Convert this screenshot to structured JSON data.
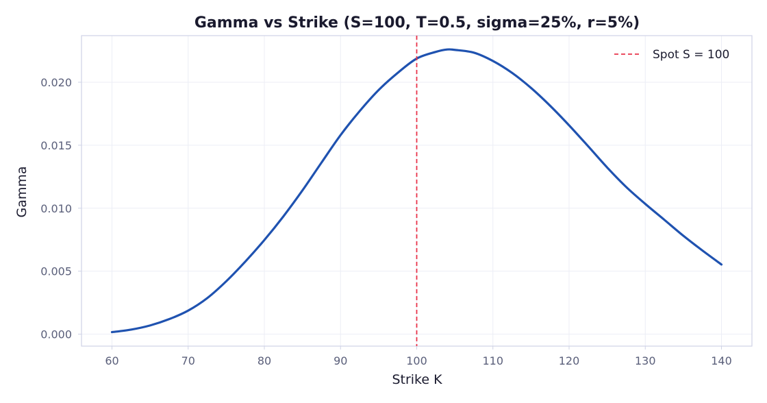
{
  "chart_data": {
    "type": "line",
    "title": "Gamma vs Strike  (S=100, T=0.5, sigma=25%, r=5%)",
    "xlabel": "Strike K",
    "ylabel": "Gamma",
    "xlim": [
      56,
      144
    ],
    "ylim": [
      -0.00095,
      0.0237
    ],
    "x_ticks": [
      60,
      70,
      80,
      90,
      100,
      110,
      120,
      130,
      140
    ],
    "x_tick_labels": [
      "60",
      "70",
      "80",
      "90",
      "100",
      "110",
      "120",
      "130",
      "140"
    ],
    "y_ticks": [
      0,
      0.005,
      0.01,
      0.015,
      0.02
    ],
    "y_tick_labels": [
      "0.000",
      "0.005",
      "0.010",
      "0.015",
      "0.020"
    ],
    "grid": true,
    "legend_position": "top-right",
    "series": [
      {
        "name": "",
        "color": "#1f52b0",
        "x": [
          60,
          62.5,
          65,
          67.5,
          70,
          72.5,
          75,
          77.5,
          80,
          82.5,
          85,
          87.5,
          90,
          92.5,
          95,
          97.5,
          100,
          102.5,
          104,
          105,
          107.5,
          110,
          112.5,
          115,
          117.5,
          120,
          122.5,
          125,
          127.5,
          130,
          132.5,
          135,
          137.5,
          140
        ],
        "y": [
          0.00016,
          0.00036,
          0.00069,
          0.00119,
          0.00187,
          0.00286,
          0.0042,
          0.00576,
          0.00747,
          0.00935,
          0.01141,
          0.01362,
          0.0158,
          0.0177,
          0.01938,
          0.02074,
          0.02188,
          0.02241,
          0.0226,
          0.02257,
          0.02235,
          0.02169,
          0.02075,
          0.01955,
          0.01814,
          0.01658,
          0.01492,
          0.01323,
          0.01168,
          0.01034,
          0.00908,
          0.00781,
          0.00664,
          0.00553
        ]
      },
      {
        "name": "Spot S = 100",
        "color": "#e8334a",
        "style": "dashed",
        "vertical_line_x": 100
      }
    ]
  }
}
